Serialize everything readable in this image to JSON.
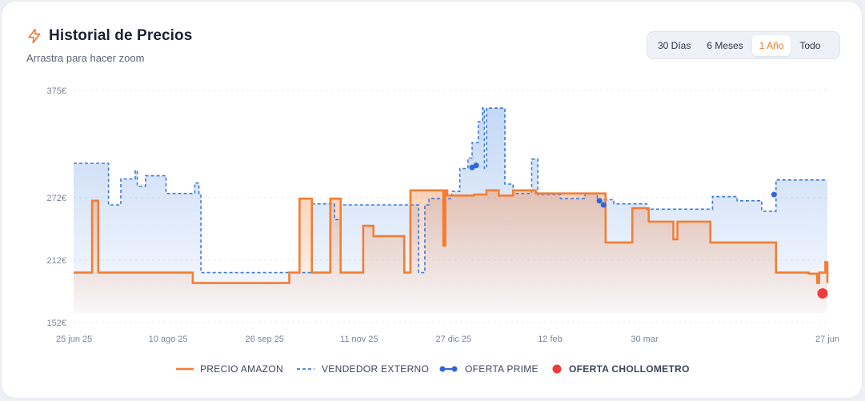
{
  "header": {
    "title": "Historial de Precios",
    "subtitle": "Arrastra para hacer zoom",
    "icon": "lightning-icon"
  },
  "range_selector": {
    "options": [
      "30 Días",
      "6 Meses",
      "1 Año",
      "Todo"
    ],
    "active": "1 Año"
  },
  "colors": {
    "amazon": "#f47d33",
    "external": "#3a7be0",
    "prime": "#2f66d8",
    "chollometro": "#ee3b3b"
  },
  "chart_data": {
    "type": "line",
    "y_ticks": [
      "375€",
      "272€",
      "212€",
      "152€"
    ],
    "y_tick_values": [
      375,
      272,
      212,
      152
    ],
    "ylim": [
      152,
      375
    ],
    "x_ticks": [
      "25 jun 25",
      "10 ago 25",
      "26 sep 25",
      "11 nov 25",
      "27 dic 25",
      "12 feb",
      "30 mar",
      "27 jun"
    ],
    "x_tick_values": [
      "2025-06-25",
      "2025-08-10",
      "2025-09-26",
      "2025-11-11",
      "2025-12-27",
      "2026-02-12",
      "2026-03-30",
      "2026-06-27"
    ],
    "xlim": [
      "2025-06-25",
      "2026-06-27"
    ],
    "grid": true,
    "legend": [
      "PRECIO AMAZON",
      "VENDEDOR EXTERNO",
      "OFERTA PRIME",
      "OFERTA CHOLLOMETRO"
    ],
    "legend_position": "bottom",
    "series": [
      {
        "name": "PRECIO AMAZON",
        "style": "step-solid",
        "points": [
          [
            "2025-06-25",
            200
          ],
          [
            "2025-07-03",
            200
          ],
          [
            "2025-07-04",
            269
          ],
          [
            "2025-07-07",
            200
          ],
          [
            "2025-07-17",
            200
          ],
          [
            "2025-08-01",
            200
          ],
          [
            "2025-08-12",
            200
          ],
          [
            "2025-08-12",
            200
          ],
          [
            "2025-08-21",
            200
          ],
          [
            "2025-08-22",
            190
          ],
          [
            "2025-09-25",
            190
          ],
          [
            "2025-10-07",
            190
          ],
          [
            "2025-10-08",
            200
          ],
          [
            "2025-10-12",
            200
          ],
          [
            "2025-10-13",
            271
          ],
          [
            "2025-10-18",
            271
          ],
          [
            "2025-10-19",
            200
          ],
          [
            "2025-10-27",
            200
          ],
          [
            "2025-10-28",
            271
          ],
          [
            "2025-11-01",
            271
          ],
          [
            "2025-11-02",
            200
          ],
          [
            "2025-11-12",
            200
          ],
          [
            "2025-11-13",
            245
          ],
          [
            "2025-11-17",
            245
          ],
          [
            "2025-11-18",
            235
          ],
          [
            "2025-12-02",
            235
          ],
          [
            "2025-12-03",
            200
          ],
          [
            "2025-12-05",
            200
          ],
          [
            "2025-12-06",
            279
          ],
          [
            "2025-12-21",
            279
          ],
          [
            "2025-12-22",
            226
          ],
          [
            "2025-12-23",
            279
          ],
          [
            "2025-12-24",
            274
          ],
          [
            "2026-01-05",
            274
          ],
          [
            "2026-01-06",
            275
          ],
          [
            "2026-01-12",
            279
          ],
          [
            "2026-01-17",
            279
          ],
          [
            "2026-01-18",
            274
          ],
          [
            "2026-01-24",
            274
          ],
          [
            "2026-01-25",
            279
          ],
          [
            "2026-02-05",
            276
          ],
          [
            "2026-03-10",
            276
          ],
          [
            "2026-03-11",
            229
          ],
          [
            "2026-03-23",
            229
          ],
          [
            "2026-03-24",
            262
          ],
          [
            "2026-03-31",
            262
          ],
          [
            "2026-04-01",
            249
          ],
          [
            "2026-04-12",
            249
          ],
          [
            "2026-04-13",
            232
          ],
          [
            "2026-04-15",
            249
          ],
          [
            "2026-04-30",
            249
          ],
          [
            "2026-05-01",
            229
          ],
          [
            "2026-06-02",
            200
          ],
          [
            "2026-06-14",
            200
          ],
          [
            "2026-06-18",
            199
          ],
          [
            "2026-06-22",
            190
          ],
          [
            "2026-06-23",
            200
          ],
          [
            "2026-06-26",
            210
          ],
          [
            "2026-06-27",
            190
          ]
        ]
      },
      {
        "name": "VENDEDOR EXTERNO",
        "style": "step-dashed",
        "points": [
          [
            "2025-06-25",
            305
          ],
          [
            "2025-07-11",
            305
          ],
          [
            "2025-07-12",
            265
          ],
          [
            "2025-07-17",
            265
          ],
          [
            "2025-07-18",
            290
          ],
          [
            "2025-07-24",
            290
          ],
          [
            "2025-07-25",
            298
          ],
          [
            "2025-07-26",
            283
          ],
          [
            "2025-07-29",
            283
          ],
          [
            "2025-07-30",
            293
          ],
          [
            "2025-08-08",
            293
          ],
          [
            "2025-08-09",
            276
          ],
          [
            "2025-08-22",
            276
          ],
          [
            "2025-08-23",
            286
          ],
          [
            "2025-08-25",
            276
          ],
          [
            "2025-08-26",
            200
          ],
          [
            "2025-10-18",
            200
          ],
          [
            "2025-10-19",
            266
          ],
          [
            "2025-10-29",
            266
          ],
          [
            "2025-10-30",
            251
          ],
          [
            "2025-11-02",
            265
          ],
          [
            "2025-12-09",
            265
          ],
          [
            "2025-12-10",
            200
          ],
          [
            "2025-12-12",
            200
          ],
          [
            "2025-12-13",
            265
          ],
          [
            "2025-12-15",
            271
          ],
          [
            "2025-12-25",
            271
          ],
          [
            "2025-12-26",
            278
          ],
          [
            "2025-12-30",
            300
          ],
          [
            "2026-01-03",
            310
          ],
          [
            "2026-01-05",
            325
          ],
          [
            "2026-01-08",
            345
          ],
          [
            "2026-01-10",
            358
          ],
          [
            "2026-01-11",
            300
          ],
          [
            "2026-01-12",
            358
          ],
          [
            "2026-01-20",
            358
          ],
          [
            "2026-01-21",
            285
          ],
          [
            "2026-01-25",
            276
          ],
          [
            "2026-02-02",
            276
          ],
          [
            "2026-02-03",
            309
          ],
          [
            "2026-02-05",
            309
          ],
          [
            "2026-02-06",
            275
          ],
          [
            "2026-02-16",
            275
          ],
          [
            "2026-02-17",
            271
          ],
          [
            "2026-02-28",
            271
          ],
          [
            "2026-03-01",
            276
          ],
          [
            "2026-03-06",
            276
          ],
          [
            "2026-03-07",
            270
          ],
          [
            "2026-03-15",
            266
          ],
          [
            "2026-03-30",
            266
          ],
          [
            "2026-03-31",
            261
          ],
          [
            "2026-05-01",
            261
          ],
          [
            "2026-05-02",
            273
          ],
          [
            "2026-05-13",
            273
          ],
          [
            "2026-05-14",
            269
          ],
          [
            "2026-05-25",
            269
          ],
          [
            "2026-05-26",
            259
          ],
          [
            "2026-06-01",
            259
          ],
          [
            "2026-06-02",
            289
          ],
          [
            "2026-06-27",
            289
          ]
        ]
      },
      {
        "name": "OFERTA PRIME",
        "style": "markers",
        "points": [
          [
            "2026-01-05",
            301
          ],
          [
            "2026-01-07",
            303
          ],
          [
            "2026-03-08",
            269
          ],
          [
            "2026-03-10",
            265
          ],
          [
            "2026-06-01",
            275
          ]
        ]
      },
      {
        "name": "OFERTA CHOLLOMETRO",
        "style": "marker",
        "points": [
          [
            "2026-06-27",
            180
          ]
        ]
      }
    ]
  }
}
